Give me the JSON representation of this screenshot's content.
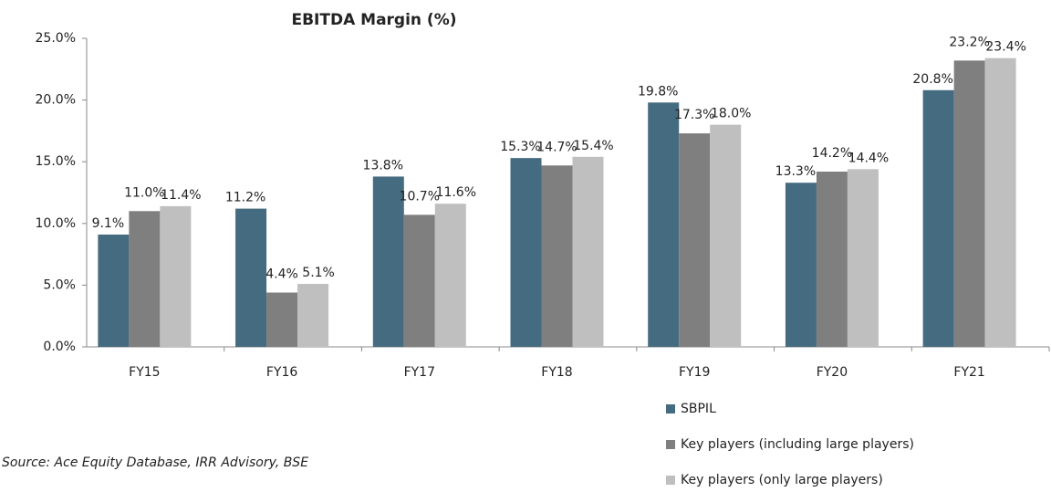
{
  "chart_data": {
    "type": "bar",
    "title": "EBITDA Margin (%)",
    "source": "Source: Ace Equity Database, IRR Advisory, BSE",
    "categories": [
      "FY15",
      "FY16",
      "FY17",
      "FY18",
      "FY19",
      "FY20",
      "FY21"
    ],
    "series": [
      {
        "name": "SBPIL",
        "color": "#456b80",
        "values": [
          9.1,
          11.2,
          13.8,
          15.3,
          19.8,
          13.3,
          20.8
        ],
        "value_labels": [
          "9.1%",
          "11.2%",
          "13.8%",
          "15.3%",
          "19.8%",
          "13.3%",
          "20.8%"
        ]
      },
      {
        "name": "Key players (including large players)",
        "color": "#7f7f7f",
        "values": [
          11.0,
          4.4,
          10.7,
          14.7,
          17.3,
          14.2,
          23.2
        ],
        "value_labels": [
          "11.0%",
          "4.4%",
          "10.7%",
          "14.7%",
          "17.3%",
          "14.2%",
          "23.2%"
        ]
      },
      {
        "name": "Key players (only large players)",
        "color": "#bfbfbf",
        "values": [
          11.4,
          5.1,
          11.6,
          15.4,
          18.0,
          14.4,
          23.4
        ],
        "value_labels": [
          "11.4%",
          "5.1%",
          "11.6%",
          "15.4%",
          "18.0%",
          "14.4%",
          "23.4%"
        ]
      }
    ],
    "ylim": [
      0,
      25
    ],
    "yticks": [
      {
        "value": 0,
        "label": "0.0%"
      },
      {
        "value": 5,
        "label": "5.0%"
      },
      {
        "value": 10,
        "label": "10.0%"
      },
      {
        "value": 15,
        "label": "15.0%"
      },
      {
        "value": 20,
        "label": "20.0%"
      },
      {
        "value": 25,
        "label": "25.0%"
      }
    ],
    "grid": false,
    "legend": "bottom-right"
  }
}
